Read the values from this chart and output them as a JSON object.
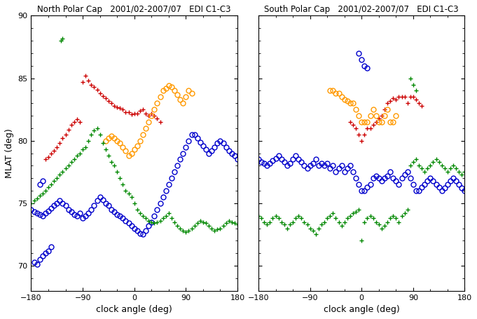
{
  "title_left": "North Polar Cap   2001/02-2007/07   EDI C1-C3",
  "title_right": "South Polar Cap   2001/02-2007/07   EDI C1-C3",
  "xlabel": "clock angle (deg)",
  "ylabel": "MLAT (deg)",
  "xlim": [
    -180,
    180
  ],
  "ylim": [
    68,
    90
  ],
  "yticks": [
    70,
    75,
    80,
    85,
    90
  ],
  "xticks": [
    -180,
    -90,
    0,
    90,
    180
  ],
  "colors": {
    "red": "#cc0000",
    "orange": "#ff9900",
    "blue": "#0000cc",
    "green": "#008800"
  },
  "north_red_x": [
    -155,
    -150,
    -145,
    -140,
    -135,
    -130,
    -125,
    -120,
    -115,
    -110,
    -105,
    -100,
    -95,
    -90,
    -85,
    -80,
    -75,
    -70,
    -65,
    -60,
    -55,
    -50,
    -45,
    -40,
    -35,
    -30,
    -25,
    -20,
    -15,
    -10,
    -5,
    0,
    5,
    10,
    15,
    20,
    25,
    30,
    35,
    40,
    45
  ],
  "north_red_y": [
    78.5,
    78.7,
    79.0,
    79.2,
    79.5,
    79.8,
    80.2,
    80.5,
    80.9,
    81.3,
    81.5,
    81.7,
    81.5,
    84.7,
    85.2,
    84.8,
    84.5,
    84.3,
    84.1,
    83.8,
    83.6,
    83.4,
    83.2,
    83.0,
    82.8,
    82.7,
    82.6,
    82.5,
    82.3,
    82.3,
    82.1,
    82.2,
    82.2,
    82.4,
    82.5,
    82.2,
    82.0,
    82.2,
    82.0,
    81.8,
    81.5
  ],
  "north_orange_x": [
    -50,
    -45,
    -40,
    -35,
    -30,
    -25,
    -20,
    -15,
    -10,
    -5,
    0,
    5,
    10,
    15,
    20,
    25,
    30,
    35,
    40,
    45,
    50,
    55,
    60,
    65,
    70,
    75,
    80,
    85,
    90,
    95,
    100
  ],
  "north_orange_y": [
    80.0,
    80.2,
    80.4,
    80.2,
    80.0,
    79.8,
    79.5,
    79.2,
    78.8,
    79.0,
    79.3,
    79.6,
    80.0,
    80.5,
    81.0,
    81.5,
    82.0,
    82.5,
    83.0,
    83.5,
    84.0,
    84.2,
    84.4,
    84.3,
    84.0,
    83.7,
    83.3,
    83.0,
    83.5,
    84.0,
    83.8
  ],
  "north_blue_x": [
    -180,
    -175,
    -170,
    -165,
    -160,
    -155,
    -150,
    -145,
    -140,
    -135,
    -130,
    -125,
    -120,
    -115,
    -110,
    -105,
    -100,
    -95,
    -90,
    -85,
    -80,
    -75,
    -70,
    -65,
    -60,
    -55,
    -50,
    -45,
    -40,
    -35,
    -30,
    -25,
    -20,
    -15,
    -10,
    -5,
    0,
    5,
    10,
    15,
    20,
    25,
    30,
    35,
    40,
    45,
    50,
    55,
    60,
    65,
    70,
    75,
    80,
    85,
    90,
    95,
    100,
    105,
    110,
    115,
    120,
    125,
    130,
    135,
    140,
    145,
    150,
    155,
    160,
    165,
    170,
    175,
    180,
    -175,
    -170,
    -165,
    -160,
    -155,
    -150,
    -145,
    -165,
    -160
  ],
  "north_blue_y": [
    74.5,
    74.3,
    74.2,
    74.1,
    74.0,
    74.2,
    74.4,
    74.6,
    74.8,
    75.0,
    75.2,
    75.0,
    74.8,
    74.5,
    74.3,
    74.1,
    74.0,
    74.2,
    73.8,
    74.0,
    74.2,
    74.5,
    74.8,
    75.2,
    75.5,
    75.3,
    75.0,
    74.8,
    74.5,
    74.3,
    74.1,
    74.0,
    73.8,
    73.6,
    73.4,
    73.2,
    73.0,
    72.8,
    72.6,
    72.5,
    72.8,
    73.2,
    73.5,
    74.0,
    74.5,
    75.0,
    75.5,
    76.0,
    76.5,
    77.0,
    77.5,
    78.0,
    78.5,
    79.0,
    79.5,
    80.0,
    80.5,
    80.5,
    80.2,
    79.9,
    79.6,
    79.3,
    79.0,
    79.2,
    79.5,
    79.8,
    80.0,
    79.8,
    79.5,
    79.2,
    79.0,
    78.8,
    78.5,
    70.3,
    70.1,
    70.5,
    70.8,
    71.0,
    71.2,
    71.5,
    76.5,
    76.8
  ],
  "north_green_x": [
    -180,
    -175,
    -170,
    -165,
    -160,
    -155,
    -150,
    -145,
    -140,
    -135,
    -130,
    -125,
    -120,
    -115,
    -110,
    -105,
    -100,
    -95,
    -90,
    -85,
    -80,
    -75,
    -70,
    -65,
    -60,
    -55,
    -50,
    -45,
    -40,
    -35,
    -30,
    -25,
    -20,
    -15,
    -10,
    -5,
    0,
    5,
    10,
    15,
    20,
    25,
    30,
    35,
    40,
    45,
    50,
    55,
    60,
    65,
    70,
    75,
    80,
    85,
    90,
    95,
    100,
    105,
    110,
    115,
    120,
    125,
    130,
    135,
    140,
    145,
    150,
    155,
    160,
    165,
    170,
    175,
    180,
    -128,
    -125
  ],
  "north_green_y": [
    75.0,
    75.2,
    75.4,
    75.6,
    75.8,
    76.0,
    76.3,
    76.5,
    76.8,
    77.0,
    77.3,
    77.5,
    77.8,
    78.0,
    78.3,
    78.5,
    78.8,
    79.0,
    79.3,
    79.5,
    80.0,
    80.5,
    80.8,
    81.0,
    80.5,
    79.8,
    79.3,
    78.8,
    78.3,
    78.0,
    77.5,
    77.0,
    76.5,
    76.0,
    75.8,
    75.5,
    75.0,
    74.5,
    74.2,
    74.0,
    73.8,
    73.6,
    73.5,
    73.4,
    73.5,
    73.6,
    73.8,
    74.0,
    74.2,
    73.8,
    73.5,
    73.2,
    73.0,
    72.8,
    72.7,
    72.8,
    73.0,
    73.2,
    73.4,
    73.6,
    73.5,
    73.4,
    73.2,
    73.0,
    72.8,
    72.9,
    73.0,
    73.2,
    73.4,
    73.6,
    73.5,
    73.4,
    73.3,
    88.0,
    88.2
  ],
  "south_red_x": [
    -20,
    -15,
    -10,
    -5,
    0,
    5,
    10,
    15,
    20,
    25,
    30,
    35,
    40,
    45,
    50,
    55,
    60,
    65,
    70,
    75,
    80,
    85,
    90,
    95,
    100,
    105
  ],
  "south_red_y": [
    81.5,
    81.3,
    81.0,
    80.5,
    80.0,
    80.5,
    81.0,
    81.0,
    81.3,
    81.5,
    81.8,
    82.0,
    82.5,
    83.0,
    83.2,
    83.4,
    83.3,
    83.5,
    83.5,
    83.5,
    83.0,
    83.5,
    83.5,
    83.3,
    83.0,
    82.8
  ],
  "south_orange_x": [
    -55,
    -50,
    -45,
    -40,
    -35,
    -30,
    -25,
    -20,
    -15,
    -10,
    -5,
    0,
    5,
    10,
    15,
    20,
    25,
    30,
    35,
    40,
    45,
    50,
    55,
    60
  ],
  "south_orange_y": [
    84.0,
    84.0,
    83.8,
    83.8,
    83.5,
    83.3,
    83.2,
    83.0,
    83.0,
    82.5,
    82.0,
    81.5,
    81.5,
    81.5,
    82.0,
    82.5,
    82.0,
    81.5,
    81.5,
    82.0,
    82.5,
    81.5,
    81.5,
    82.0
  ],
  "south_blue_x": [
    -180,
    -175,
    -170,
    -165,
    -160,
    -155,
    -150,
    -145,
    -140,
    -135,
    -130,
    -125,
    -120,
    -115,
    -110,
    -105,
    -100,
    -95,
    -90,
    -85,
    -80,
    -75,
    -70,
    -65,
    -60,
    -55,
    -50,
    -45,
    -40,
    -35,
    -30,
    -25,
    -20,
    -15,
    -10,
    -5,
    0,
    5,
    10,
    15,
    20,
    25,
    30,
    35,
    40,
    45,
    50,
    55,
    60,
    65,
    70,
    75,
    80,
    85,
    90,
    95,
    100,
    105,
    110,
    115,
    120,
    125,
    130,
    135,
    140,
    145,
    150,
    155,
    160,
    165,
    170,
    175,
    180,
    -5,
    0,
    5,
    10
  ],
  "south_blue_y": [
    78.5,
    78.3,
    78.2,
    78.0,
    78.2,
    78.4,
    78.6,
    78.8,
    78.5,
    78.3,
    78.0,
    78.2,
    78.5,
    78.8,
    78.5,
    78.3,
    78.0,
    77.8,
    78.0,
    78.2,
    78.5,
    78.0,
    78.2,
    78.0,
    78.2,
    77.8,
    78.0,
    77.5,
    77.8,
    78.0,
    77.5,
    77.8,
    78.0,
    77.5,
    77.0,
    76.5,
    76.0,
    76.0,
    76.3,
    76.5,
    77.0,
    77.2,
    77.0,
    76.8,
    77.0,
    77.2,
    77.5,
    77.0,
    76.8,
    76.5,
    77.0,
    77.3,
    77.5,
    77.0,
    76.5,
    76.0,
    76.0,
    76.3,
    76.5,
    76.8,
    77.0,
    76.8,
    76.5,
    76.3,
    76.0,
    76.2,
    76.5,
    76.8,
    77.0,
    76.8,
    76.5,
    76.2,
    76.0,
    87.0,
    86.5,
    86.0,
    85.8
  ],
  "south_green_x": [
    -180,
    -175,
    -170,
    -165,
    -160,
    -155,
    -150,
    -145,
    -140,
    -135,
    -130,
    -125,
    -120,
    -115,
    -110,
    -105,
    -100,
    -95,
    -90,
    -85,
    -80,
    -75,
    -70,
    -65,
    -60,
    -55,
    -50,
    -45,
    -40,
    -35,
    -30,
    -25,
    -20,
    -15,
    -10,
    -5,
    0,
    5,
    10,
    15,
    20,
    25,
    30,
    35,
    40,
    45,
    50,
    55,
    60,
    65,
    70,
    75,
    80,
    85,
    90,
    95,
    100,
    105,
    110,
    115,
    120,
    125,
    130,
    135,
    140,
    145,
    150,
    155,
    160,
    165,
    170,
    175,
    180,
    85,
    90,
    95
  ],
  "south_green_y": [
    74.0,
    73.8,
    73.5,
    73.3,
    73.5,
    73.8,
    74.0,
    73.8,
    73.5,
    73.3,
    73.0,
    73.3,
    73.5,
    73.8,
    74.0,
    73.8,
    73.5,
    73.3,
    73.0,
    72.8,
    72.5,
    73.0,
    73.3,
    73.5,
    73.8,
    74.0,
    74.2,
    73.8,
    73.5,
    73.2,
    73.5,
    73.8,
    74.0,
    74.2,
    74.3,
    74.5,
    72.0,
    73.5,
    73.8,
    74.0,
    73.8,
    73.5,
    73.3,
    73.0,
    73.2,
    73.5,
    73.8,
    74.0,
    73.8,
    73.5,
    74.0,
    74.2,
    74.5,
    78.0,
    78.3,
    78.5,
    78.0,
    77.8,
    77.5,
    77.8,
    78.0,
    78.3,
    78.5,
    78.3,
    78.0,
    77.8,
    77.5,
    77.8,
    78.0,
    77.8,
    77.5,
    77.3,
    77.5,
    85.0,
    84.5,
    84.0
  ]
}
